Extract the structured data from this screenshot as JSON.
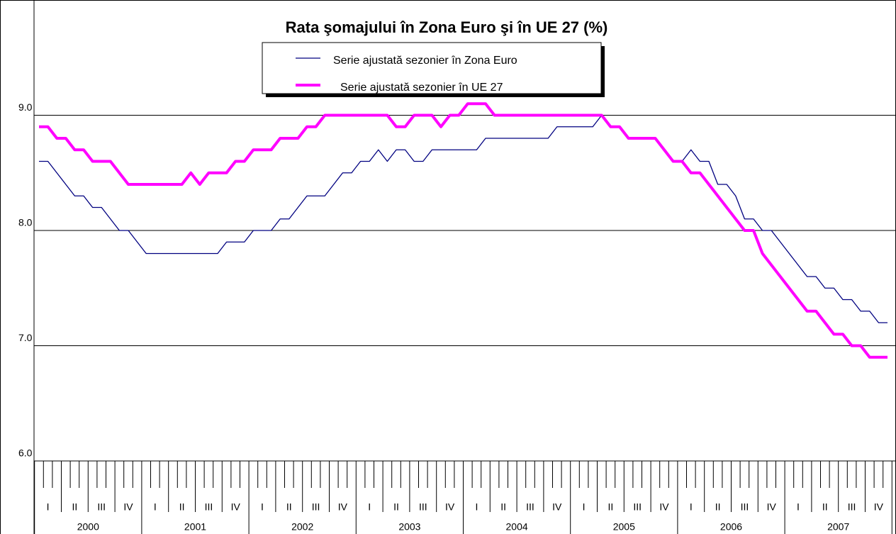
{
  "chart_data": {
    "type": "line",
    "title": "Rata şomajului în Zona Euro şi în UE 27 (%)",
    "quarters": [
      "I",
      "II",
      "III",
      "IV",
      "I",
      "II",
      "III",
      "IV",
      "I",
      "II",
      "III",
      "IV",
      "I",
      "II",
      "III",
      "IV",
      "I",
      "II",
      "III",
      "IV",
      "I",
      "II",
      "III",
      "IV",
      "I",
      "II",
      "III",
      "IV",
      "I",
      "II",
      "III",
      "IV"
    ],
    "years": [
      "2000",
      "2001",
      "2002",
      "2003",
      "2004",
      "2005",
      "2006",
      "2007"
    ],
    "series": [
      {
        "name": "Serie ajustată sezonier în Zona Euro",
        "color": "#000080",
        "width": 1.3,
        "values": [
          8.6,
          8.6,
          8.5,
          8.4,
          8.3,
          8.3,
          8.2,
          8.2,
          8.1,
          8.0,
          8.0,
          7.9,
          7.8,
          7.8,
          7.8,
          7.8,
          7.8,
          7.8,
          7.8,
          7.8,
          7.8,
          7.9,
          7.9,
          7.9,
          8.0,
          8.0,
          8.0,
          8.1,
          8.1,
          8.2,
          8.3,
          8.3,
          8.3,
          8.4,
          8.5,
          8.5,
          8.6,
          8.6,
          8.7,
          8.6,
          8.7,
          8.7,
          8.6,
          8.6,
          8.7,
          8.7,
          8.7,
          8.7,
          8.7,
          8.7,
          8.8,
          8.8,
          8.8,
          8.8,
          8.8,
          8.8,
          8.8,
          8.8,
          8.9,
          8.9,
          8.9,
          8.9,
          8.9,
          9.0,
          8.9,
          8.9,
          8.8,
          8.8,
          8.8,
          8.8,
          8.7,
          8.6,
          8.6,
          8.7,
          8.6,
          8.6,
          8.4,
          8.4,
          8.3,
          8.1,
          8.1,
          8.0,
          8.0,
          7.9,
          7.8,
          7.7,
          7.6,
          7.6,
          7.5,
          7.5,
          7.4,
          7.4,
          7.3,
          7.3,
          7.2,
          7.2
        ]
      },
      {
        "name": "Serie ajustată sezonier în UE 27",
        "color": "#ff00ff",
        "width": 4,
        "values": [
          8.9,
          8.9,
          8.8,
          8.8,
          8.7,
          8.7,
          8.6,
          8.6,
          8.6,
          8.5,
          8.4,
          8.4,
          8.4,
          8.4,
          8.4,
          8.4,
          8.4,
          8.5,
          8.4,
          8.5,
          8.5,
          8.5,
          8.6,
          8.6,
          8.7,
          8.7,
          8.7,
          8.8,
          8.8,
          8.8,
          8.9,
          8.9,
          9.0,
          9.0,
          9.0,
          9.0,
          9.0,
          9.0,
          9.0,
          9.0,
          8.9,
          8.9,
          9.0,
          9.0,
          9.0,
          8.9,
          9.0,
          9.0,
          9.1,
          9.1,
          9.1,
          9.0,
          9.0,
          9.0,
          9.0,
          9.0,
          9.0,
          9.0,
          9.0,
          9.0,
          9.0,
          9.0,
          9.0,
          9.0,
          8.9,
          8.9,
          8.8,
          8.8,
          8.8,
          8.8,
          8.7,
          8.6,
          8.6,
          8.5,
          8.5,
          8.4,
          8.3,
          8.2,
          8.1,
          8.0,
          8.0,
          7.8,
          7.7,
          7.6,
          7.5,
          7.4,
          7.3,
          7.3,
          7.2,
          7.1,
          7.1,
          7.0,
          7.0,
          6.9,
          6.9,
          6.9
        ]
      }
    ],
    "ylim": [
      6,
      9.9
    ],
    "yticks": [
      {
        "value": 6,
        "label": "6.0"
      },
      {
        "value": 7,
        "label": "7.0"
      },
      {
        "value": 8,
        "label": "8.0"
      },
      {
        "value": 9,
        "label": "9.0"
      }
    ],
    "grid": true
  }
}
